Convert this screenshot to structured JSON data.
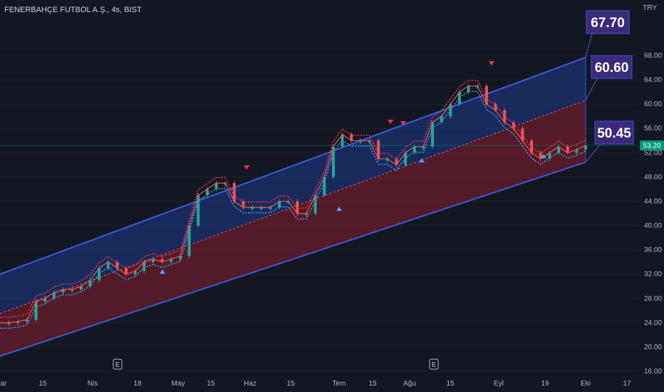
{
  "header": {
    "symbol_title": "FENERBAHÇE FUTBOL A.Ş., 4s, BIST",
    "currency": "TRY"
  },
  "colors": {
    "background": "#131722",
    "channel_line": "#3a5bd9",
    "upper_fill": "#1e3a8a",
    "lower_fill": "#7f1d2d",
    "mid_line": "#e05a6a",
    "candle_up": "#26a69a",
    "candle_down": "#ef5350",
    "trail_up": "#42a5f5",
    "trail_down": "#f23645",
    "callout_bg": "#3b2a7a",
    "price_tag_bg": "#089981",
    "grid": "#1e222d"
  },
  "chart_data": {
    "type": "line",
    "title": "FENERBAHÇE FUTBOL A.Ş., 4s, BIST",
    "y_axis": {
      "range": [
        16,
        70
      ],
      "tick_labels": [
        "16.00",
        "20.00",
        "24.00",
        "28.00",
        "32.00",
        "36.00",
        "40.00",
        "44.00",
        "48.00",
        "52.00",
        "56.00",
        "60.00",
        "64.00",
        "68.00"
      ]
    },
    "x_axis": {
      "tick_labels": [
        "ar",
        "15",
        "Nis",
        "18",
        "May",
        "15",
        "Haz",
        "15",
        "Tem",
        "15",
        "Ağu",
        "15",
        "Eyl",
        "19",
        "Eki",
        "17"
      ]
    },
    "channel": {
      "upper": {
        "start": 32,
        "end": 67.7
      },
      "middle": {
        "start": 25.5,
        "end": 60.6
      },
      "lower": {
        "start": 18.5,
        "end": 50.45
      }
    },
    "callouts": [
      "67.70",
      "60.60",
      "50.45"
    ],
    "last_price": "53.20",
    "event_markers": [
      "E",
      "E"
    ],
    "series": [
      {
        "values": [
          24,
          24,
          24.2,
          24.5,
          27.5,
          28,
          29,
          29.5,
          29.5,
          30,
          31,
          33,
          34,
          33,
          32,
          32.5,
          34,
          34.5,
          34,
          34.5,
          35,
          40,
          45,
          46,
          47,
          47,
          44,
          43,
          43,
          43,
          43,
          44,
          44,
          42,
          42,
          45,
          48,
          53,
          55,
          54,
          54,
          54,
          51,
          51,
          50,
          52,
          53,
          53,
          57,
          58,
          60,
          62,
          63,
          63,
          60,
          59,
          57,
          56,
          54,
          52,
          51,
          52,
          53,
          52,
          52.5,
          53.2
        ]
      }
    ]
  }
}
